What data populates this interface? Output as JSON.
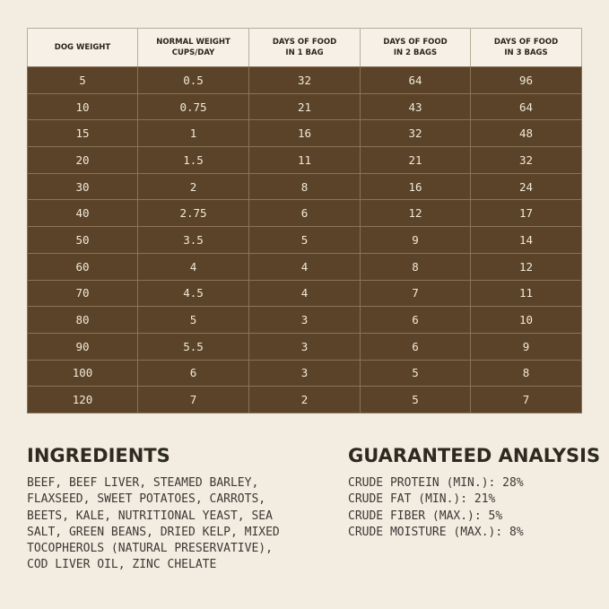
{
  "table": {
    "header": [
      [
        "DOG WEIGHT"
      ],
      [
        "NORMAL WEIGHT",
        "CUPS/DAY"
      ],
      [
        "DAYS OF FOOD",
        "IN 1 BAG"
      ],
      [
        "DAYS OF FOOD",
        "IN 2 BAGS"
      ],
      [
        "DAYS OF FOOD",
        "IN 3 BAGS"
      ]
    ],
    "rows": [
      [
        5,
        0.5,
        32,
        64,
        96
      ],
      [
        10,
        0.75,
        21,
        43,
        64
      ],
      [
        15,
        1,
        16,
        32,
        48
      ],
      [
        20,
        1.5,
        11,
        21,
        32
      ],
      [
        30,
        2,
        8,
        16,
        24
      ],
      [
        40,
        2.75,
        6,
        12,
        17
      ],
      [
        50,
        3.5,
        5,
        9,
        14
      ],
      [
        60,
        4,
        4,
        8,
        12
      ],
      [
        70,
        4.5,
        4,
        7,
        11
      ],
      [
        80,
        5,
        3,
        6,
        10
      ],
      [
        90,
        5.5,
        3,
        6,
        9
      ],
      [
        100,
        6,
        3,
        5,
        8
      ],
      [
        120,
        7,
        2,
        5,
        7
      ]
    ]
  },
  "ingredients": {
    "title": "INGREDIENTS",
    "lines": [
      "BEEF, BEEF LIVER, STEAMED BARLEY,",
      "FLAXSEED, SWEET POTATOES, CARROTS,",
      "BEETS, KALE, NUTRITIONAL YEAST, SEA",
      "SALT, GREEN BEANS, DRIED KELP, MIXED",
      "TOCOPHEROLS (NATURAL PRESERVATIVE),",
      "COD LIVER OIL, ZINC CHELATE"
    ]
  },
  "analysis": {
    "title": "GUARANTEED ANALYSIS",
    "lines": [
      "CRUDE PROTEIN (MIN.): 28%",
      "CRUDE FAT (MIN.): 21%",
      "CRUDE FIBER (MAX.): 5%",
      "CRUDE MOISTURE (MAX.): 8%"
    ]
  }
}
